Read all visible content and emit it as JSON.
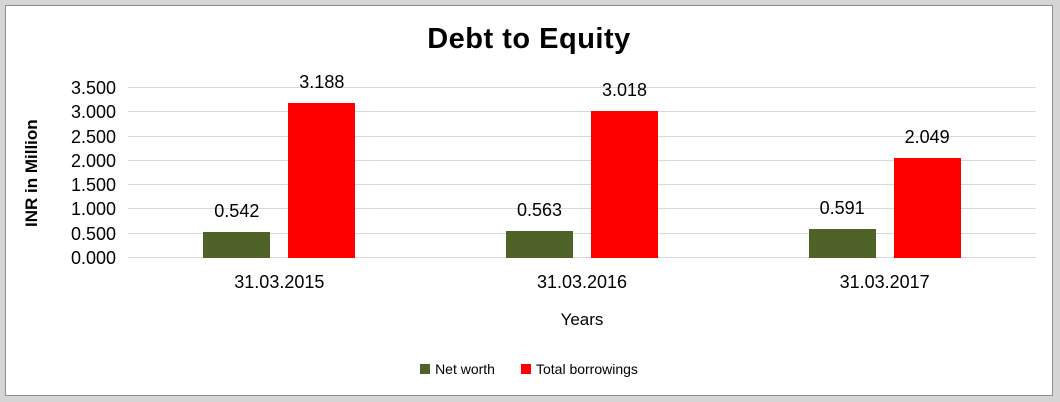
{
  "chart_data": {
    "type": "bar",
    "title": "Debt to Equity",
    "xlabel": "Years",
    "ylabel": "INR in Million",
    "categories": [
      "31.03.2015",
      "31.03.2016",
      "31.03.2017"
    ],
    "series": [
      {
        "name": "Net worth",
        "color": "#4F6228",
        "values": [
          0.542,
          0.563,
          0.591
        ]
      },
      {
        "name": "Total borrowings",
        "color": "#FF0000",
        "values": [
          3.188,
          3.018,
          2.049
        ]
      }
    ],
    "data_labels": [
      [
        "0.542",
        "0.563",
        "0.591"
      ],
      [
        "3.188",
        "3.018",
        "2.049"
      ]
    ],
    "ylim": [
      0,
      3.5
    ],
    "ytick_step": 0.5,
    "ytick_labels": [
      "0.000",
      "0.500",
      "1.000",
      "1.500",
      "2.000",
      "2.500",
      "3.000",
      "3.500"
    ],
    "grid": true,
    "legend_position": "bottom"
  },
  "colors": {
    "gridline": "#D9D9D9",
    "frame_background": "#D5D5D5",
    "frame_border": "#8E8E8E",
    "plot_background": "#FFFFFF",
    "text": "#000000"
  }
}
